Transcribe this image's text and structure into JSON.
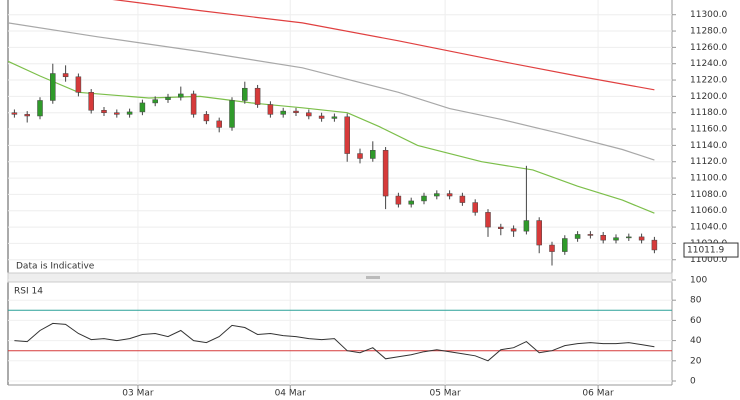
{
  "chart_data": [
    {
      "type": "candlestick",
      "annotation": "Data is Indicative",
      "x": [
        1,
        3,
        5,
        7,
        9,
        11,
        13,
        15,
        17,
        19,
        21,
        23,
        25,
        27,
        29,
        31,
        33,
        35,
        37,
        39,
        41,
        43,
        45,
        47,
        49,
        51,
        53,
        55,
        57,
        59,
        61,
        63,
        65,
        67,
        69,
        71,
        73,
        75,
        77,
        79,
        81,
        83,
        85,
        87,
        89,
        91,
        93,
        95,
        97,
        99,
        101
      ],
      "open": [
        11180,
        11178,
        11176,
        11195,
        11228,
        11224,
        11205,
        11183,
        11180,
        11178,
        11181,
        11192,
        11196,
        11199,
        11203,
        11178,
        11170,
        11162,
        11195,
        11210,
        11190,
        11178,
        11182,
        11180,
        11176,
        11173,
        11175,
        11130,
        11124,
        11134,
        11078,
        11068,
        11072,
        11078,
        11081,
        11078,
        11070,
        11058,
        11040,
        11038,
        11035,
        11048,
        11018,
        11010,
        11026,
        11031,
        11030,
        11024,
        11027,
        11028,
        11024
      ],
      "high": [
        11184,
        11182,
        11199,
        11240,
        11238,
        11228,
        11209,
        11187,
        11184,
        11185,
        11196,
        11200,
        11203,
        11212,
        11207,
        11182,
        11174,
        11199,
        11218,
        11214,
        11194,
        11186,
        11186,
        11184,
        11180,
        11179,
        11179,
        11136,
        11145,
        11138,
        11082,
        11076,
        11082,
        11085,
        11085,
        11082,
        11074,
        11062,
        11044,
        11042,
        11115,
        11052,
        11022,
        11030,
        11035,
        11035,
        11034,
        11031,
        11032,
        11032,
        11028
      ],
      "low": [
        11174,
        11168,
        11172,
        11191,
        11218,
        11200,
        11179,
        11176,
        11174,
        11174,
        11177,
        11188,
        11192,
        11195,
        11174,
        11166,
        11156,
        11158,
        11191,
        11186,
        11174,
        11174,
        11176,
        11172,
        11169,
        11169,
        11120,
        11118,
        11120,
        11062,
        11064,
        11064,
        11068,
        11074,
        11074,
        11066,
        11054,
        11028,
        11030,
        11028,
        11031,
        11008,
        10993,
        11006,
        11022,
        11026,
        11020,
        11020,
        11023,
        11020,
        11008
      ],
      "close": [
        11178,
        11176,
        11195,
        11228,
        11224,
        11205,
        11183,
        11180,
        11178,
        11181,
        11192,
        11196,
        11199,
        11203,
        11178,
        11170,
        11162,
        11195,
        11210,
        11190,
        11178,
        11182,
        11180,
        11176,
        11173,
        11175,
        11130,
        11124,
        11134,
        11078,
        11068,
        11072,
        11078,
        11081,
        11078,
        11070,
        11058,
        11040,
        11038,
        11035,
        11048,
        11018,
        11010,
        11026,
        11031,
        11030,
        11024,
        11027,
        11028,
        11024,
        11012
      ],
      "up_color": "#2f9a2a",
      "down_color": "#d63a3a",
      "overlays": [
        {
          "color": "#7cbf4a",
          "x": [
            0,
            5,
            11,
            22,
            30,
            38,
            46,
            53,
            58,
            64,
            74,
            82,
            89,
            96,
            101
          ],
          "values": [
            11243,
            11225,
            11205,
            11198,
            11200,
            11192,
            11186,
            11180,
            11163,
            11140,
            11120,
            11110,
            11090,
            11073,
            11057
          ]
        },
        {
          "color": "#a8a8a8",
          "x": [
            0,
            14,
            30,
            46,
            61,
            69,
            77,
            86,
            96,
            101
          ],
          "values": [
            11290,
            11273,
            11255,
            11235,
            11205,
            11185,
            11172,
            11155,
            11135,
            11122
          ]
        },
        {
          "color": "#e04040",
          "x": [
            13,
            30,
            46,
            61,
            77,
            89,
            101
          ],
          "values": [
            11322,
            11305,
            11290,
            11268,
            11243,
            11225,
            11208
          ]
        }
      ],
      "last_price": {
        "value": 11011.9,
        "label": "11011.9"
      },
      "xlim": [
        0,
        103.75
      ],
      "ylim": [
        10985,
        11318
      ],
      "yticks": [
        {
          "value": 11000,
          "label": "11000.0"
        },
        {
          "value": 11020,
          "label": "11020.0"
        },
        {
          "value": 11040,
          "label": "11040.0"
        },
        {
          "value": 11060,
          "label": "11060.0"
        },
        {
          "value": 11080,
          "label": "11080.0"
        },
        {
          "value": 11100,
          "label": "11100.0"
        },
        {
          "value": 11120,
          "label": "11120.0"
        },
        {
          "value": 11140,
          "label": "11140.0"
        },
        {
          "value": 11160,
          "label": "11160.0"
        },
        {
          "value": 11180,
          "label": "11180.0"
        },
        {
          "value": 11200,
          "label": "11200.0"
        },
        {
          "value": 11220,
          "label": "11220.0"
        },
        {
          "value": 11240,
          "label": "11240.0"
        },
        {
          "value": 11260,
          "label": "11260.0"
        },
        {
          "value": 11280,
          "label": "11280.0"
        },
        {
          "value": 11300,
          "label": "11300.0"
        }
      ],
      "grid": true
    },
    {
      "type": "line",
      "title": "RSI 14",
      "color": "#333333",
      "values": [
        40,
        39,
        50,
        57,
        56,
        47,
        41,
        42,
        40,
        42,
        46,
        47,
        44,
        50,
        40,
        38,
        44,
        55,
        53,
        46,
        47,
        45,
        44,
        42,
        41,
        42,
        30,
        28,
        33,
        22,
        24,
        26,
        29,
        31,
        29,
        27,
        25,
        20,
        31,
        33,
        39,
        28,
        30,
        35,
        37,
        38,
        37,
        37,
        38,
        36,
        34
      ],
      "levels": [
        {
          "value": 70,
          "color": "#2aa198"
        },
        {
          "value": 30,
          "color": "#d63a3a"
        }
      ],
      "ylim": [
        0,
        100
      ],
      "yticks": [
        0,
        20,
        40,
        60,
        80,
        100
      ],
      "xticks": [
        {
          "value": 20.3,
          "label": "03 Mar"
        },
        {
          "value": 44.1,
          "label": "04 Mar"
        },
        {
          "value": 68.3,
          "label": "05 Mar"
        },
        {
          "value": 92.2,
          "label": "06 Mar"
        }
      ]
    }
  ]
}
